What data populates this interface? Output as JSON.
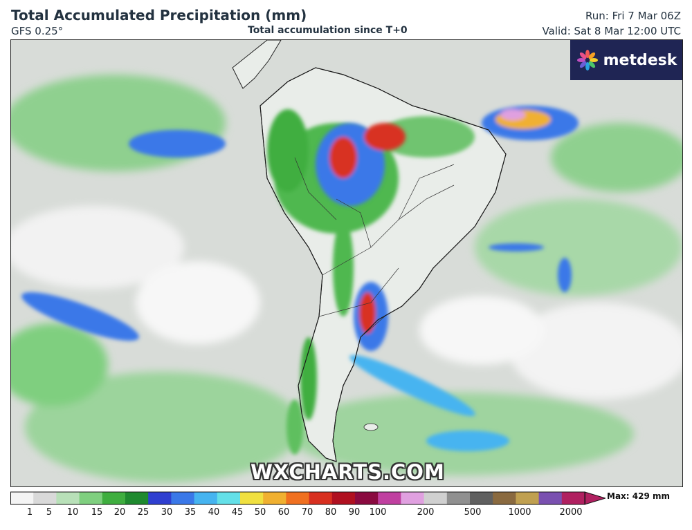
{
  "header": {
    "title": "Total Accumulated Precipitation (mm)",
    "model": "GFS 0.25°",
    "subtitle": "Total accumulation since T+0",
    "run": "Run: Fri 7 Mar 06Z",
    "valid": "Valid: Sat 8 Mar 12:00 UTC"
  },
  "logo": {
    "text": "metdesk",
    "bg": "#1f2554"
  },
  "watermark": "WXCHARTS.COM",
  "legend": {
    "ticks": [
      "1",
      "5",
      "10",
      "15",
      "20",
      "25",
      "30",
      "35",
      "40",
      "45",
      "50",
      "60",
      "70",
      "80",
      "90",
      "100",
      "200",
      "500",
      "1000",
      "2000"
    ],
    "max_label": "Max: 429 mm",
    "colors": [
      "#f4f4f4",
      "#d9d9d9",
      "#b8e0b8",
      "#7fcf7f",
      "#3fae3f",
      "#1f8a2f",
      "#2f3fd0",
      "#3a78e8",
      "#46b4f0",
      "#64e0e8",
      "#f0e040",
      "#f0b030",
      "#f07020",
      "#d83020",
      "#b01020",
      "#8a0a40",
      "#c040a0",
      "#e0a0e0",
      "#d0d0d0",
      "#909090",
      "#606060",
      "#8a6a40",
      "#c0a050",
      "#7a50b0",
      "#b02060"
    ]
  }
}
